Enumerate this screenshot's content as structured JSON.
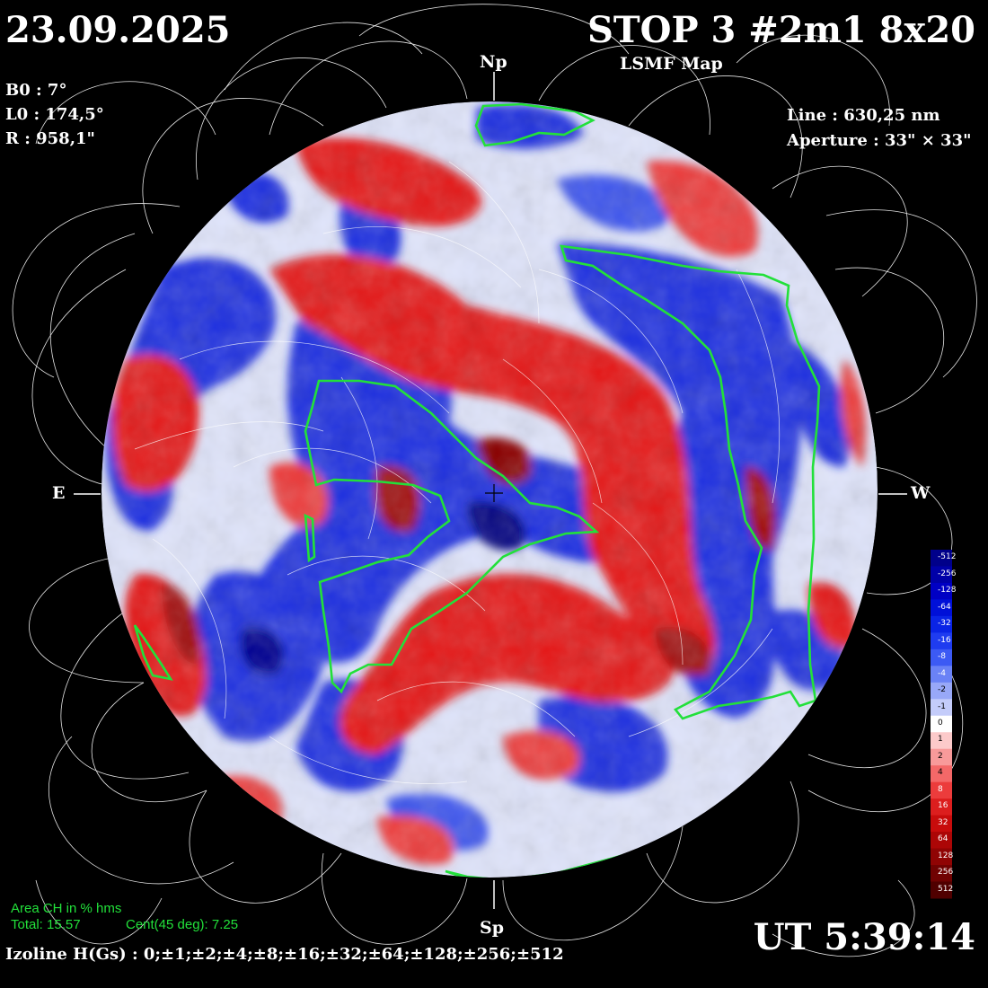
{
  "header": {
    "date": "23.09.2025",
    "title": "STOP 3 #2m1 8x20",
    "subtitle": "LSMF  Map",
    "ut": "UT 5:39:14"
  },
  "params": {
    "b0": "B0 : 7°",
    "l0": "L0 : 174,5°",
    "r": "R  : 958,1\""
  },
  "instrument": {
    "line": "Line :  630,25 nm",
    "aperture": "Aperture : 33\" × 33\""
  },
  "directions": {
    "north": "Np",
    "south": "Sp",
    "east": "E",
    "west": "W"
  },
  "coronal_holes": {
    "heading": "Area CH in % hms",
    "total": "Total: 15.57",
    "central": "Cent(45 deg): 7.25"
  },
  "isolines": "Izoline H(Gs) : 0;±1;±2;±4;±8;±16;±32;±64;±128;±256;±512",
  "scale": {
    "labels": [
      "-512",
      "-256",
      "-128",
      "-64",
      "-32",
      "-16",
      "-8",
      "-4",
      "-2",
      "-1",
      "0",
      "1",
      "2",
      "4",
      "8",
      "16",
      "32",
      "64",
      "128",
      "256",
      "512"
    ],
    "colors": [
      "#00008a",
      "#0000a8",
      "#0000c4",
      "#0010d8",
      "#0a24e6",
      "#1f3cf0",
      "#3c5af4",
      "#6a82f6",
      "#98a8f8",
      "#c4ccfa",
      "#ffffff",
      "#fccaca",
      "#f89a9a",
      "#f46868",
      "#ec3c3c",
      "#dc1e1e",
      "#c80c0c",
      "#ac0606",
      "#900404",
      "#700202",
      "#500000"
    ]
  },
  "colors": {
    "positive": "#e41a1a",
    "negative": "#1a30e0",
    "coronal_hole": "#22e03a",
    "field_lines": "#ffffff"
  }
}
